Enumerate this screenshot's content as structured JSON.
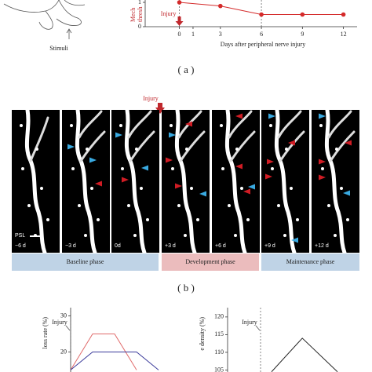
{
  "panel_a": {
    "label": "( a )",
    "stimuli": "Stimuli"
  },
  "chart_data": [
    {
      "type": "line",
      "y_label": [
        "Mech",
        "thresh"
      ],
      "x_label": "Days after peripheral nerve injury",
      "annotation": "Injury",
      "vlines": [
        0,
        6
      ],
      "x": [
        0,
        3,
        6,
        9,
        12
      ],
      "series": [
        {
          "color": "#d42a2a",
          "values": [
            1,
            0.85,
            0.5,
            0.5,
            0.5
          ]
        }
      ],
      "xlim": [
        -2.5,
        13
      ],
      "ylim": [
        0,
        1
      ],
      "xticks": [
        0,
        1,
        3,
        6,
        9,
        12
      ],
      "yticks": [
        0,
        1
      ],
      "markers": true
    },
    {
      "type": "line",
      "y_label": "loss rate (%)",
      "annotation": "Injury",
      "vlines": [
        0
      ],
      "xlim": [
        0,
        5
      ],
      "ylim": [
        14,
        31
      ],
      "yticks": [
        20,
        30
      ],
      "series": [
        {
          "color": "#e06a6a",
          "x": [
            0,
            1,
            2,
            3
          ],
          "values": [
            15,
            25,
            25,
            15
          ]
        },
        {
          "color": "#3a3a9a",
          "x": [
            0,
            1,
            3,
            4
          ],
          "values": [
            15,
            20,
            20,
            15
          ]
        }
      ]
    },
    {
      "type": "line",
      "y_label": "e density (%)",
      "annotation": "Injury",
      "vlines": [
        1.5
      ],
      "xlim": [
        0,
        6
      ],
      "ylim": [
        104,
        121.3
      ],
      "yticks": [
        105,
        110,
        115,
        120
      ],
      "series": [
        {
          "color": "#222222",
          "x": [
            2,
            3.4,
            5
          ],
          "values": [
            104.5,
            114,
            104.5
          ]
        }
      ]
    }
  ],
  "panel_b": {
    "label": "( b )",
    "injury": "Injury",
    "scale_label": "PSL",
    "frames": [
      "−6 d",
      "−3 d",
      "0d",
      "+3 d",
      "+6 d",
      "+9 d",
      "+12 d"
    ],
    "phases": [
      "Baseline phase",
      "Development phase",
      "Maintenance phase"
    ]
  }
}
